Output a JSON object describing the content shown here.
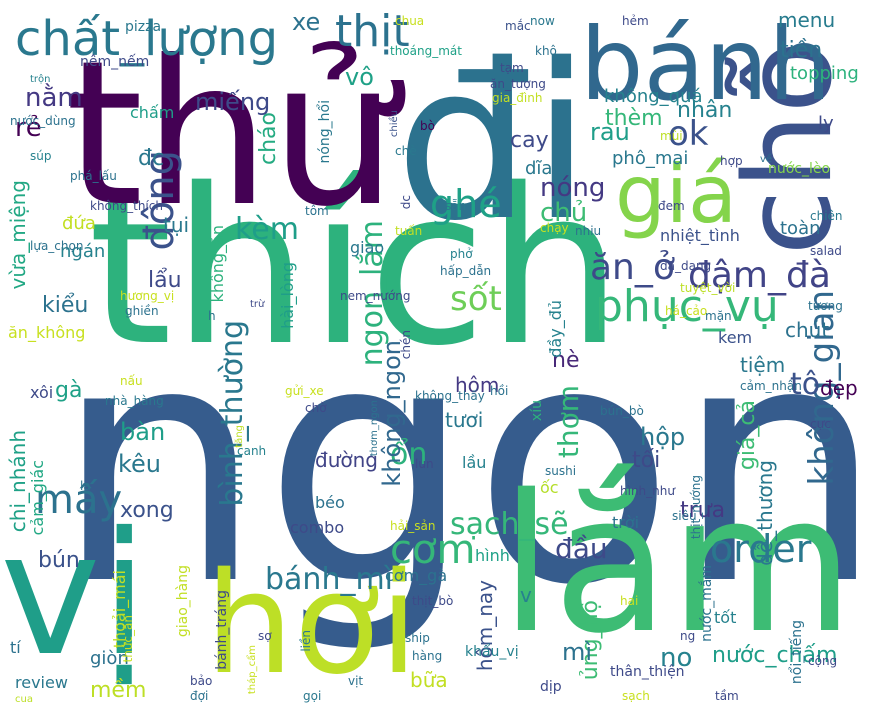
{
  "words": [
    {
      "text": "ngon",
      "color": "#365c8d"
    },
    {
      "text": "thích",
      "color": "#2db27d"
    },
    {
      "text": "thử",
      "color": "#440154"
    },
    {
      "text": "đi",
      "color": "#2c728e"
    },
    {
      "text": "vị",
      "color": "#1f9e89"
    },
    {
      "text": "lắm",
      "color": "#3dbc74"
    },
    {
      "text": "hơi",
      "color": "#bddf26"
    },
    {
      "text": "chỗ",
      "color": "#3b528b"
    },
    {
      "text": "bánh",
      "color": "#31688e"
    },
    {
      "text": "giá",
      "color": "#84d44b"
    },
    {
      "text": "chất_lượng",
      "color": "#2a788e"
    },
    {
      "text": "thịt",
      "color": "#2c728e"
    },
    {
      "text": "phục_vụ",
      "color": "#35b779"
    },
    {
      "text": "ăn_ở",
      "color": "#3e4a89"
    },
    {
      "text": "đậm_đà",
      "color": "#414487"
    },
    {
      "text": "đông",
      "color": "#3b528b"
    },
    {
      "text": "order",
      "color": "#2a788e"
    },
    {
      "text": "không_gian",
      "color": "#31688e"
    },
    {
      "text": "ghé",
      "color": "#1fa187"
    },
    {
      "text": "sốt",
      "color": "#6ece58"
    },
    {
      "text": "cơm",
      "color": "#35b779"
    },
    {
      "text": "ok",
      "color": "#3b528b"
    },
    {
      "text": "mấy",
      "color": "#2c728e"
    },
    {
      "text": "sạch_sẽ",
      "color": "#35b779"
    },
    {
      "text": "bình_thường",
      "color": "#2a788e"
    },
    {
      "text": "ngon_lắm",
      "color": "#2db27d"
    },
    {
      "text": "bánh_mì",
      "color": "#2a788e"
    },
    {
      "text": "kèm",
      "color": "#1f9e89"
    },
    {
      "text": "nóng",
      "color": "#443983"
    },
    {
      "text": "chủ",
      "color": "#3dbc74"
    },
    {
      "text": "rau",
      "color": "#1f9e89"
    },
    {
      "text": "miếng",
      "color": "#3e4a89"
    },
    {
      "text": "nằm",
      "color": "#443983"
    },
    {
      "text": "rẻ",
      "color": "#440154"
    },
    {
      "text": "vô",
      "color": "#1fa187"
    },
    {
      "text": "xe",
      "color": "#2c728e"
    },
    {
      "text": "nhân",
      "color": "#26828e"
    },
    {
      "text": "menu",
      "color": "#287c8e"
    },
    {
      "text": "tiền",
      "color": "#2c728e"
    },
    {
      "text": "topping",
      "color": "#2db27d"
    },
    {
      "text": "đc",
      "color": "#2a788e"
    },
    {
      "text": "cháo",
      "color": "#25ab82"
    },
    {
      "text": "vừa_miệng",
      "color": "#22a884"
    },
    {
      "text": "kiểu",
      "color": "#2c728e"
    },
    {
      "text": "lẩu",
      "color": "#3e4a89"
    },
    {
      "text": "tụi",
      "color": "#2a788e"
    },
    {
      "text": "đứa",
      "color": "#c2df23"
    },
    {
      "text": "ngán",
      "color": "#26828e"
    },
    {
      "text": "gà",
      "color": "#1fa187"
    },
    {
      "text": "bàn",
      "color": "#1f9e89"
    },
    {
      "text": "kêu",
      "color": "#2a788e"
    },
    {
      "text": "ổn",
      "color": "#2db27d"
    },
    {
      "text": "thơm",
      "color": "#35b779"
    },
    {
      "text": "hộp",
      "color": "#2a788e"
    },
    {
      "text": "tối",
      "color": "#3e4a89"
    },
    {
      "text": "giá_cả",
      "color": "#3dbc74"
    },
    {
      "text": "tô",
      "color": "#3b528b"
    },
    {
      "text": "đẹp",
      "color": "#440154"
    },
    {
      "text": "tiệm",
      "color": "#2a788e"
    },
    {
      "text": "chút",
      "color": "#2c728e"
    },
    {
      "text": "dễ_thương",
      "color": "#2a788e"
    },
    {
      "text": "trưa",
      "color": "#443983"
    },
    {
      "text": "chi_nhánh",
      "color": "#1fa187"
    },
    {
      "text": "xong",
      "color": "#3b528b"
    },
    {
      "text": "bún",
      "color": "#3b528b"
    },
    {
      "text": "mềm",
      "color": "#bddf26"
    },
    {
      "text": "đầu",
      "color": "#3e4a89"
    },
    {
      "text": "no",
      "color": "#26828e"
    },
    {
      "text": "nước_chấm",
      "color": "#1f9e89"
    },
    {
      "text": "ủng_hộ",
      "color": "#3dbc74"
    },
    {
      "text": "mì",
      "color": "#2c728e"
    },
    {
      "text": "hôm_nay",
      "color": "#3b528b"
    },
    {
      "text": "không_ngon",
      "color": "#31688e"
    },
    {
      "text": "đường",
      "color": "#414487"
    },
    {
      "text": "tươi",
      "color": "#2a788e"
    },
    {
      "text": "hôm",
      "color": "#443983"
    },
    {
      "text": "nè",
      "color": "#482878"
    },
    {
      "text": "cay",
      "color": "#3e4a89"
    },
    {
      "text": "thèm",
      "color": "#35b779"
    },
    {
      "text": "dĩa",
      "color": "#2a788e"
    },
    {
      "text": "phô_mai",
      "color": "#2a788e"
    },
    {
      "text": "không_quá",
      "color": "#26828e"
    },
    {
      "text": "ly",
      "color": "#3e4a89"
    },
    {
      "text": "nước_lèo",
      "color": "#84d44b"
    },
    {
      "text": "nhiệt_tình",
      "color": "#3b528b"
    },
    {
      "text": "toàn",
      "color": "#2c728e"
    },
    {
      "text": "đầy_đủ",
      "color": "#26828e"
    },
    {
      "text": "chấm",
      "color": "#1f9e89"
    },
    {
      "text": "nêm_nếm",
      "color": "#3e4a89"
    },
    {
      "text": "giao",
      "color": "#2a788e"
    },
    {
      "text": "hài_lòng",
      "color": "#1f9e89"
    },
    {
      "text": "không_ăn",
      "color": "#2db27d"
    },
    {
      "text": "nóng_hổi",
      "color": "#2a788e"
    },
    {
      "text": "cơm_gà",
      "color": "#2c728e"
    },
    {
      "text": "combo",
      "color": "#3e4a89"
    },
    {
      "text": "béo",
      "color": "#2c728e"
    },
    {
      "text": "ốc",
      "color": "#b5de2b"
    },
    {
      "text": "trời",
      "color": "#2c728e"
    },
    {
      "text": "hình",
      "color": "#1fa187"
    },
    {
      "text": "v",
      "color": "#26828e"
    },
    {
      "text": "xíu",
      "color": "#2db27d"
    },
    {
      "text": "lầu",
      "color": "#26828e"
    },
    {
      "text": "kem",
      "color": "#3b528b"
    },
    {
      "text": "ăn_không",
      "color": "#c8e020"
    },
    {
      "text": "xôi",
      "color": "#3e4a89"
    },
    {
      "text": "cảm_giác",
      "color": "#22a884"
    },
    {
      "text": "thoải_mái",
      "color": "#c2df23"
    },
    {
      "text": "giòn",
      "color": "#2c728e"
    },
    {
      "text": "tí",
      "color": "#2c728e"
    },
    {
      "text": "review",
      "color": "#2a788e"
    },
    {
      "text": "giao_hàng",
      "color": "#c2df23"
    },
    {
      "text": "bánh_tráng",
      "color": "#3e4a89"
    },
    {
      "text": "khẩu_vị",
      "color": "#26828e"
    },
    {
      "text": "bữa",
      "color": "#c2df23"
    },
    {
      "text": "dịp",
      "color": "#3e4a89"
    },
    {
      "text": "thân_thiện",
      "color": "#3e4a89"
    },
    {
      "text": "tốt",
      "color": "#26828e"
    },
    {
      "text": "nước_mắm",
      "color": "#2c728e"
    },
    {
      "text": "nổi_tiếng",
      "color": "#2c728e"
    },
    {
      "text": "pizza",
      "color": "#2a788e"
    },
    {
      "text": "chua",
      "color": "#c8e020"
    },
    {
      "text": "mắc",
      "color": "#3b528b"
    },
    {
      "text": "now",
      "color": "#2a788e"
    },
    {
      "text": "hẻm",
      "color": "#3e4a89"
    },
    {
      "text": "thoáng_mát",
      "color": "#1fa187"
    },
    {
      "text": "khô",
      "color": "#2c728e"
    },
    {
      "text": "tạm",
      "color": "#3e4a89"
    },
    {
      "text": "ăn_tượng",
      "color": "#3e4a89"
    },
    {
      "text": "gia_đình",
      "color": "#c2df23"
    },
    {
      "text": "trộn",
      "color": "#26828e"
    },
    {
      "text": "nước_dùng",
      "color": "#2c728e"
    },
    {
      "text": "súp",
      "color": "#26828e"
    },
    {
      "text": "chiều",
      "color": "#3b528b"
    },
    {
      "text": "bò",
      "color": "#440154"
    },
    {
      "text": "phá_lấu",
      "color": "#2c728e"
    },
    {
      "text": "mùi",
      "color": "#bddf26"
    },
    {
      "text": "hợp",
      "color": "#3e4a89"
    },
    {
      "text": "về",
      "color": "#2c728e"
    },
    {
      "text": "chè",
      "color": "#2a788e"
    },
    {
      "text": "sẵn",
      "color": "#2a788e"
    },
    {
      "text": "không_thích",
      "color": "#3e4a89"
    },
    {
      "text": "tôm",
      "color": "#2c728e"
    },
    {
      "text": "dc",
      "color": "#3e4a89"
    },
    {
      "text": "nhiu",
      "color": "#2c728e"
    },
    {
      "text": "đem",
      "color": "#3e4a89"
    },
    {
      "text": "chiên",
      "color": "#2a788e"
    },
    {
      "text": "tuấn",
      "color": "#c2df23"
    },
    {
      "text": "phở",
      "color": "#26828e"
    },
    {
      "text": "chạy",
      "color": "#c8e020"
    },
    {
      "text": "lựa_chọn",
      "color": "#2c728e"
    },
    {
      "text": "đa_dạng",
      "color": "#3e4a89"
    },
    {
      "text": "hấp_dẫn",
      "color": "#2c728e"
    },
    {
      "text": "tuyệt_vời",
      "color": "#bddf26"
    },
    {
      "text": "salad",
      "color": "#3e4a89"
    },
    {
      "text": "nem_nướng",
      "color": "#3e4a89"
    },
    {
      "text": "há_cảo",
      "color": "#c8e020"
    },
    {
      "text": "hương_vị",
      "color": "#c8e020"
    },
    {
      "text": "trừ",
      "color": "#3e4a89"
    },
    {
      "text": "mặn",
      "color": "#2c728e"
    },
    {
      "text": "tương",
      "color": "#2c728e"
    },
    {
      "text": "ghiền",
      "color": "#2c728e"
    },
    {
      "text": "h",
      "color": "#2c728e"
    },
    {
      "text": "chén",
      "color": "#3e4a89"
    },
    {
      "text": "gửi_xe",
      "color": "#c8e020"
    },
    {
      "text": "không_thấy",
      "color": "#2c728e"
    },
    {
      "text": "hồi",
      "color": "#2c728e"
    },
    {
      "text": "cảm_nhận",
      "color": "#2c728e"
    },
    {
      "text": "nhà_hàng",
      "color": "#2a788e"
    },
    {
      "text": "nấu",
      "color": "#c8e020"
    },
    {
      "text": "chờ",
      "color": "#3e4a89"
    },
    {
      "text": "thơm_ngon",
      "color": "#2c728e"
    },
    {
      "text": "bún_bò",
      "color": "#2c728e"
    },
    {
      "text": "cực",
      "color": "#3e4a89"
    },
    {
      "text": "tăng",
      "color": "#bddf26"
    },
    {
      "text": "canh",
      "color": "#26828e"
    },
    {
      "text": "lun",
      "color": "#3e4a89"
    },
    {
      "text": "thịt_nướng",
      "color": "#2c728e"
    },
    {
      "text": "lạ",
      "color": "#2c728e"
    },
    {
      "text": "hình_như",
      "color": "#3e4a89"
    },
    {
      "text": "sushi",
      "color": "#2c728e"
    },
    {
      "text": "hải_sản",
      "color": "#c8e020"
    },
    {
      "text": "siêu",
      "color": "#2c728e"
    },
    {
      "text": "thức_ăn",
      "color": "#c8e020"
    },
    {
      "text": "thịt_bò",
      "color": "#3e4a89"
    },
    {
      "text": "hai",
      "color": "#c8e020"
    },
    {
      "text": "ng",
      "color": "#3e4a89"
    },
    {
      "text": "sợ",
      "color": "#3e4a89"
    },
    {
      "text": "liền",
      "color": "#2a788e"
    },
    {
      "text": "ship",
      "color": "#2c728e"
    },
    {
      "text": "hàng",
      "color": "#2c728e"
    },
    {
      "text": "vịt",
      "color": "#2c728e"
    },
    {
      "text": "tháp_cẩm",
      "color": "#c8e020"
    },
    {
      "text": "bảo",
      "color": "#3e4a89"
    },
    {
      "text": "đợi",
      "color": "#2c728e"
    },
    {
      "text": "gọi",
      "color": "#2a788e"
    },
    {
      "text": "cua",
      "color": "#bddf26"
    },
    {
      "text": "sạch",
      "color": "#c8e020"
    },
    {
      "text": "tầm",
      "color": "#3e4a89"
    },
    {
      "text": "cộng",
      "color": "#3e4a89"
    }
  ]
}
